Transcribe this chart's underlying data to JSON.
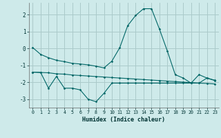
{
  "xlabel": "Humidex (Indice chaleur)",
  "x_values": [
    0,
    1,
    2,
    3,
    4,
    5,
    6,
    7,
    8,
    9,
    10,
    11,
    12,
    13,
    14,
    15,
    16,
    17,
    18,
    19,
    20,
    21,
    22,
    23
  ],
  "line1": [
    0.05,
    -0.35,
    -0.55,
    -0.7,
    -0.78,
    -0.88,
    -0.92,
    -0.97,
    -1.05,
    -1.15,
    -0.75,
    0.05,
    1.35,
    1.95,
    2.35,
    2.35,
    1.15,
    -0.15,
    -1.55,
    -1.75,
    -2.05,
    -1.55,
    -1.75,
    -1.9
  ],
  "line2": [
    -1.4,
    -1.42,
    -1.44,
    -1.5,
    -1.52,
    -1.57,
    -1.6,
    -1.63,
    -1.66,
    -1.69,
    -1.72,
    -1.75,
    -1.78,
    -1.81,
    -1.84,
    -1.87,
    -1.9,
    -1.93,
    -1.96,
    -1.99,
    -2.02,
    -2.05,
    -2.07,
    -2.1
  ],
  "line3": [
    -1.4,
    -1.42,
    -2.35,
    -1.65,
    -2.35,
    -2.35,
    -2.45,
    -3.0,
    -3.15,
    -2.65,
    -2.05,
    -2.05,
    -2.05,
    -2.05,
    -2.05,
    -2.05,
    -2.05,
    -2.05,
    -2.05,
    -2.05,
    -2.05,
    -2.05,
    -1.75,
    -1.88
  ],
  "bg_color": "#ceeaea",
  "grid_color": "#aacaca",
  "line_color": "#006666",
  "ylim": [
    -3.5,
    2.7
  ],
  "yticks": [
    -3,
    -2,
    -1,
    0,
    1,
    2
  ],
  "figsize": [
    3.2,
    2.0
  ],
  "dpi": 100
}
